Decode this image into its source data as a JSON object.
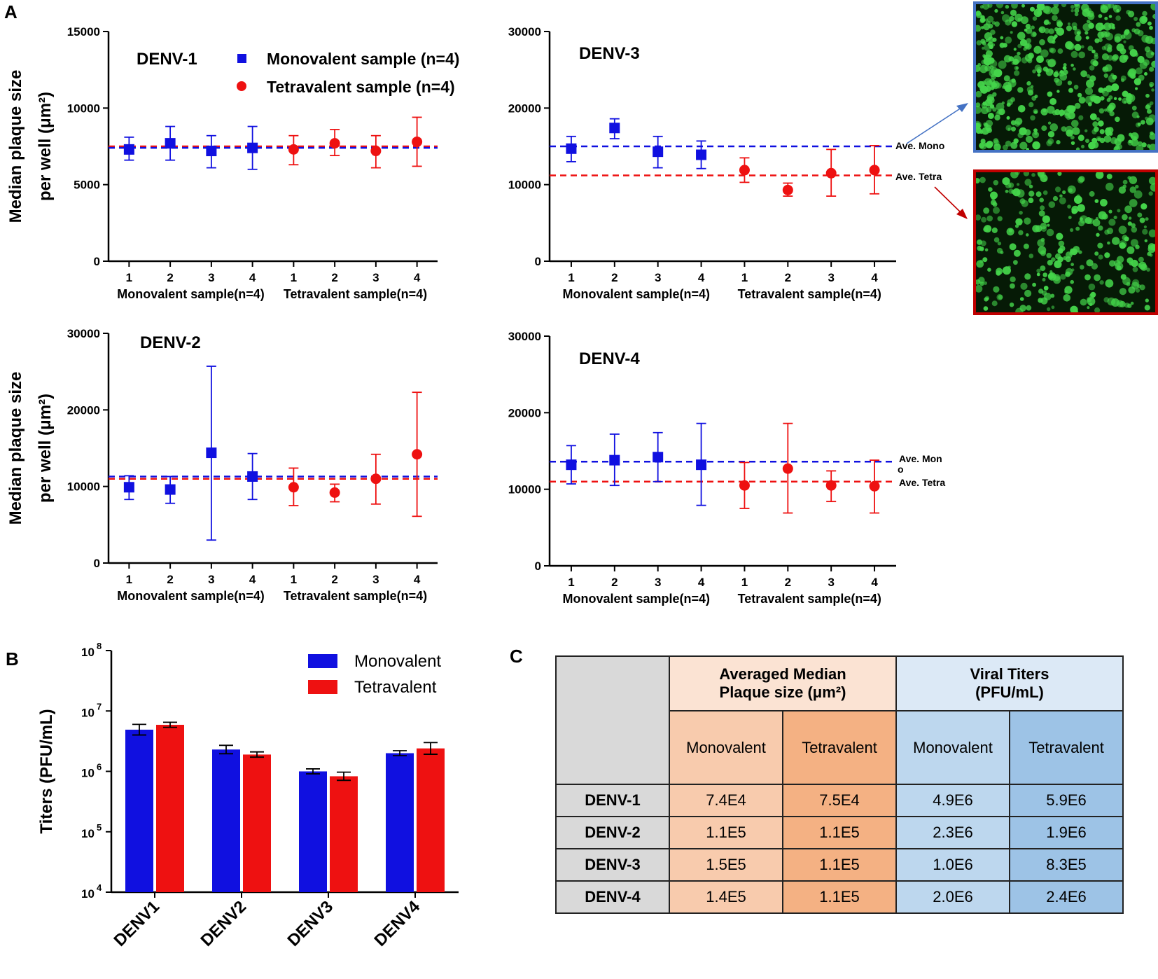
{
  "panel_labels": {
    "a": "A",
    "b": "B",
    "c": "C"
  },
  "colors": {
    "mono": "#1010e0",
    "tetra": "#ee1111",
    "mono_frame": "#4472c4",
    "tetra_frame": "#c00000",
    "cell": "#44d44a"
  },
  "chart_data": [
    {
      "type": "scatter",
      "title": "DENV-1",
      "ylabel": [
        "Median plaque size",
        "per well (μm²)"
      ],
      "ylim": [
        0,
        15000
      ],
      "yticks": [
        "0",
        "5000",
        "10000",
        "15000"
      ],
      "ytick_values": [
        0,
        5000,
        10000,
        15000
      ],
      "x_tick_labels": [
        "1",
        "2",
        "3",
        "4",
        "1",
        "2",
        "3",
        "4"
      ],
      "group_labels": [
        "Monovalent sample(n=4)",
        "Tetravalent sample(n=4)"
      ],
      "series": [
        {
          "name": "Monovalent sample (n=4)",
          "marker": "square",
          "x": [
            1,
            2,
            3,
            4
          ],
          "values": [
            7300,
            7700,
            7200,
            7400
          ],
          "err_low": [
            6600,
            6600,
            6100,
            6000
          ],
          "err_high": [
            8100,
            8800,
            8200,
            8800
          ]
        },
        {
          "name": "Tetravalent sample (n=4)",
          "marker": "circle",
          "x": [
            5,
            6,
            7,
            8
          ],
          "values": [
            7300,
            7700,
            7200,
            7800
          ],
          "err_low": [
            6300,
            6900,
            6100,
            6200
          ],
          "err_high": [
            8200,
            8600,
            8200,
            9400
          ]
        }
      ],
      "ref_lines": {
        "mono": 7400,
        "tetra": 7500
      },
      "legend": [
        "Monovalent sample (n=4)",
        "Tetravalent sample (n=4)"
      ]
    },
    {
      "type": "scatter",
      "title": "DENV-3",
      "ylim": [
        0,
        30000
      ],
      "yticks": [
        "0",
        "10000",
        "20000",
        "30000"
      ],
      "ytick_values": [
        0,
        10000,
        20000,
        30000
      ],
      "x_tick_labels": [
        "1",
        "2",
        "3",
        "4",
        "1",
        "2",
        "3",
        "4"
      ],
      "group_labels": [
        "Monovalent sample(n=4)",
        "Tetravalent sample(n=4)"
      ],
      "series": [
        {
          "name": "Monovalent",
          "marker": "square",
          "x": [
            1,
            2,
            3,
            4
          ],
          "values": [
            14700,
            17400,
            14300,
            13900
          ],
          "err_low": [
            13000,
            16000,
            12200,
            12100
          ],
          "err_high": [
            16300,
            18600,
            16300,
            15700
          ]
        },
        {
          "name": "Tetravalent",
          "marker": "circle",
          "x": [
            5,
            6,
            7,
            8
          ],
          "values": [
            11900,
            9300,
            11500,
            11900
          ],
          "err_low": [
            10300,
            8500,
            8500,
            8800
          ],
          "err_high": [
            13500,
            10200,
            14600,
            15100
          ]
        }
      ],
      "ref_lines": {
        "mono": 15000,
        "tetra": 11200
      },
      "ref_labels": [
        "Ave. Mono",
        "Ave. Tetra"
      ]
    },
    {
      "type": "scatter",
      "title": "DENV-2",
      "ylabel": [
        "Median plaque size",
        "per well (μm²)"
      ],
      "ylim": [
        0,
        30000
      ],
      "yticks": [
        "0",
        "10000",
        "20000",
        "30000"
      ],
      "ytick_values": [
        0,
        10000,
        20000,
        30000
      ],
      "x_tick_labels": [
        "1",
        "2",
        "3",
        "4",
        "1",
        "2",
        "3",
        "4"
      ],
      "group_labels": [
        "Monovalent sample(n=4)",
        "Tetravalent sample(n=4)"
      ],
      "series": [
        {
          "name": "Monovalent",
          "marker": "square",
          "x": [
            1,
            2,
            3,
            4
          ],
          "values": [
            9900,
            9600,
            14400,
            11300
          ],
          "err_low": [
            8300,
            7800,
            3000,
            8300
          ],
          "err_high": [
            11400,
            11300,
            25700,
            14300
          ]
        },
        {
          "name": "Tetravalent",
          "marker": "circle",
          "x": [
            5,
            6,
            7,
            8
          ],
          "values": [
            9900,
            9200,
            11000,
            14200
          ],
          "err_low": [
            7500,
            8000,
            7700,
            6100
          ],
          "err_high": [
            12400,
            10300,
            14200,
            22300
          ]
        }
      ],
      "ref_lines": {
        "mono": 11300,
        "tetra": 11000
      }
    },
    {
      "type": "scatter",
      "title": "DENV-4",
      "ylim": [
        0,
        30000
      ],
      "yticks": [
        "0",
        "10000",
        "20000",
        "30000"
      ],
      "ytick_values": [
        0,
        10000,
        20000,
        30000
      ],
      "x_tick_labels": [
        "1",
        "2",
        "3",
        "4",
        "1",
        "2",
        "3",
        "4"
      ],
      "group_labels": [
        "Monovalent sample(n=4)",
        "Tetravalent sample(n=4)"
      ],
      "series": [
        {
          "name": "Monovalent",
          "marker": "square",
          "x": [
            1,
            2,
            3,
            4
          ],
          "values": [
            13200,
            13800,
            14200,
            13200
          ],
          "err_low": [
            10700,
            10500,
            11000,
            7900
          ],
          "err_high": [
            15700,
            17200,
            17400,
            18600
          ]
        },
        {
          "name": "Tetravalent",
          "marker": "circle",
          "x": [
            5,
            6,
            7,
            8
          ],
          "values": [
            10500,
            12700,
            10500,
            10400
          ],
          "err_low": [
            7500,
            6900,
            8400,
            6900
          ],
          "err_high": [
            13500,
            18600,
            12400,
            13800
          ]
        }
      ],
      "ref_lines": {
        "mono": 13600,
        "tetra": 11000
      },
      "ref_labels": [
        "Ave. Mon",
        "o",
        "Ave. Tetra"
      ]
    },
    {
      "type": "bar",
      "title": "",
      "ylabel": "Titers (PFU/mL)",
      "yscale": "log",
      "ylim": [
        10000,
        100000000
      ],
      "ytick_bases": [
        "10",
        "10",
        "10",
        "10",
        "10"
      ],
      "ytick_exponents": [
        "4",
        "5",
        "6",
        "7",
        "8"
      ],
      "ytick_values": [
        10000,
        100000,
        1000000,
        10000000,
        100000000
      ],
      "categories": [
        "DENV1",
        "DENV2",
        "DENV3",
        "DENV4"
      ],
      "series": [
        {
          "name": "Monovalent",
          "values": [
            4900000,
            2300000,
            1000000,
            2000000
          ],
          "err_high": [
            6000000,
            2700000,
            1100000,
            2200000
          ]
        },
        {
          "name": "Tetravalent",
          "values": [
            5900000,
            1900000,
            830000,
            2400000
          ],
          "err_high": [
            6500000,
            2100000,
            970000,
            3000000
          ]
        }
      ],
      "legend": [
        "Monovalent",
        "Tetravalent"
      ]
    },
    {
      "type": "table",
      "header_plaque": [
        "Averaged Median",
        "Plaque size (μm²)"
      ],
      "header_titers": [
        "Viral Titers",
        "(PFU/mL)"
      ],
      "subheaders": [
        "Monovalent",
        "Tetravalent",
        "Monovalent",
        "Tetravalent"
      ],
      "rows": [
        {
          "label": "DENV-1",
          "values": [
            "7.4E4",
            "7.5E4",
            "4.9E6",
            "5.9E6"
          ]
        },
        {
          "label": "DENV-2",
          "values": [
            "1.1E5",
            "1.1E5",
            "2.3E6",
            "1.9E6"
          ]
        },
        {
          "label": "DENV-3",
          "values": [
            "1.5E5",
            "1.1E5",
            "1.0E6",
            "8.3E5"
          ]
        },
        {
          "label": "DENV-4",
          "values": [
            "1.4E5",
            "1.1E5",
            "2.0E6",
            "2.4E6"
          ]
        }
      ]
    }
  ]
}
